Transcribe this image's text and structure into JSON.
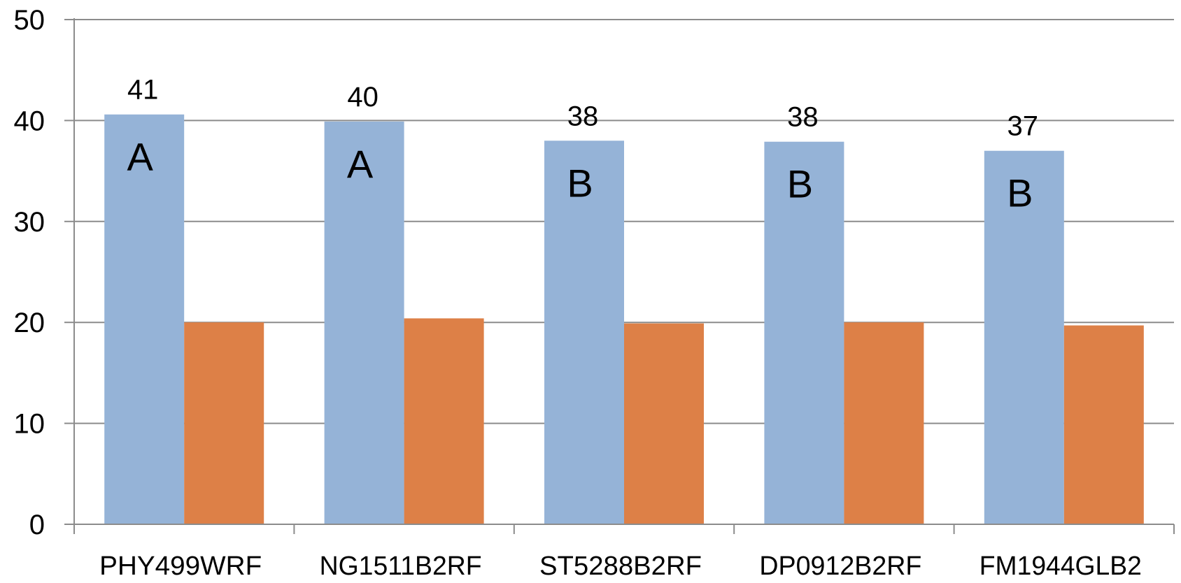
{
  "chart_data": {
    "type": "bar",
    "title": "",
    "xlabel": "",
    "ylabel": "",
    "ylim": [
      0,
      50
    ],
    "yticks": [
      "0",
      "10",
      "20",
      "30",
      "40",
      "50"
    ],
    "grid": true,
    "categories": [
      "PHY499WRF",
      "NG1511B2RF",
      "ST5288B2RF",
      "DP0912B2RF",
      "FM1944GLB2"
    ],
    "series": [
      {
        "values": [
          40.6,
          39.9,
          38.0,
          37.9,
          37.0
        ],
        "color": "#95b3d7",
        "data_labels": [
          "41",
          "40",
          "38",
          "38",
          "37"
        ],
        "group_labels": [
          "A",
          "A",
          "B",
          "B",
          "B"
        ]
      },
      {
        "values": [
          20.0,
          20.4,
          19.9,
          20.0,
          19.7
        ],
        "color": "#dd8047"
      }
    ],
    "grid_color": "#8c8c8c",
    "axis_color": "#8c8c8c"
  }
}
